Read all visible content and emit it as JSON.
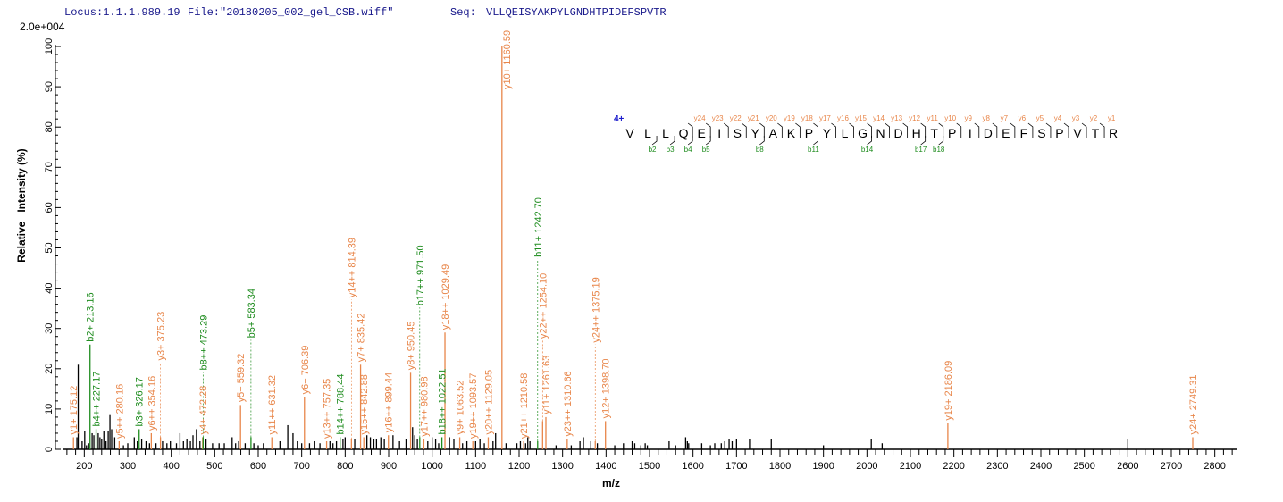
{
  "header": {
    "locus": "Locus:1.1.1.989.19",
    "file": "File:\"20180205_002_gel_CSB.wiff\"",
    "seq_label": "Seq:",
    "seq": "VLLQEISYAKPYLGNDHTPIDEFSPVTR"
  },
  "colors": {
    "y_ion": "#e8864a",
    "b_ion": "#1e8c1e",
    "unmatched": "#000000",
    "header_text": "#1a1a8c",
    "charge": "#1a1acc"
  },
  "chart_data": {
    "type": "bar",
    "subtype": "mass-spectrum-sticks",
    "scale_label": "2.0e+004",
    "xlabel": "m/z",
    "ylabel": "Relative   Intensity (%)",
    "xlim": [
      150,
      2850
    ],
    "ylim": [
      0,
      100
    ],
    "x_ticks": [
      200,
      300,
      400,
      500,
      600,
      700,
      800,
      900,
      1000,
      1100,
      1200,
      1300,
      1400,
      1500,
      1600,
      1700,
      1800,
      1900,
      2000,
      2100,
      2200,
      2300,
      2400,
      2500,
      2600,
      2700,
      2800
    ],
    "y_ticks": [
      0,
      10,
      20,
      30,
      40,
      50,
      60,
      70,
      80,
      90,
      100
    ],
    "grid": false,
    "annotated_peaks": [
      {
        "mz": 175.12,
        "intensity": 3,
        "ion": "y",
        "label": "y1+ 175.12"
      },
      {
        "mz": 213.16,
        "intensity": 26,
        "ion": "b",
        "label": "b2+ 213.16"
      },
      {
        "mz": 227.17,
        "intensity": 5,
        "ion": "b",
        "label": "b4++ 227.17"
      },
      {
        "mz": 280.16,
        "intensity": 2,
        "ion": "y",
        "label": "y5++ 280.16"
      },
      {
        "mz": 326.17,
        "intensity": 5,
        "ion": "b",
        "label": "b3+ 326.17"
      },
      {
        "mz": 354.16,
        "intensity": 4,
        "ion": "y",
        "label": "y6++ 354.16"
      },
      {
        "mz": 375.23,
        "intensity": 3,
        "ion": "y",
        "label": "y3+ 375.23"
      },
      {
        "mz": 472.28,
        "intensity": 3,
        "ion": "y",
        "label": "y4+ 472.28"
      },
      {
        "mz": 473.29,
        "intensity": 3,
        "ion": "b",
        "label": "b8++ 473.29"
      },
      {
        "mz": 559.32,
        "intensity": 11,
        "ion": "y",
        "label": "y5+ 559.32"
      },
      {
        "mz": 583.34,
        "intensity": 3,
        "ion": "b",
        "label": "b5+ 583.34"
      },
      {
        "mz": 631.32,
        "intensity": 3,
        "ion": "y",
        "label": "y11++ 631.32"
      },
      {
        "mz": 706.39,
        "intensity": 13,
        "ion": "y",
        "label": "y6+ 706.39"
      },
      {
        "mz": 757.35,
        "intensity": 2,
        "ion": "y",
        "label": "y13++ 757.35"
      },
      {
        "mz": 788.44,
        "intensity": 3,
        "ion": "b",
        "label": "b14++ 788.44"
      },
      {
        "mz": 814.39,
        "intensity": 2.5,
        "ion": "y",
        "label": "y14++ 814.39"
      },
      {
        "mz": 835.42,
        "intensity": 21,
        "ion": "y",
        "label": "y7+ 835.42"
      },
      {
        "mz": 842.88,
        "intensity": 3,
        "ion": "y",
        "label": "y15++ 842.88"
      },
      {
        "mz": 899.44,
        "intensity": 3.5,
        "ion": "y",
        "label": "y16++ 899.44"
      },
      {
        "mz": 950.45,
        "intensity": 19,
        "ion": "y",
        "label": "y8+ 950.45"
      },
      {
        "mz": 971.5,
        "intensity": 3,
        "ion": "b",
        "label": "b17++ 971.50"
      },
      {
        "mz": 980.98,
        "intensity": 2.5,
        "ion": "y",
        "label": "y17++ 980.98"
      },
      {
        "mz": 1022.51,
        "intensity": 3,
        "ion": "b",
        "label": "b18++ 1022.51"
      },
      {
        "mz": 1029.49,
        "intensity": 29,
        "ion": "y",
        "label": "y18++ 1029.49"
      },
      {
        "mz": 1063.52,
        "intensity": 3,
        "ion": "y",
        "label": "y9+ 1063.52"
      },
      {
        "mz": 1093.57,
        "intensity": 2,
        "ion": "y",
        "label": "y19++ 1093.57"
      },
      {
        "mz": 1129.05,
        "intensity": 3,
        "ion": "y",
        "label": "y20++ 1129.05"
      },
      {
        "mz": 1160.59,
        "intensity": 100,
        "ion": "y",
        "label": "y10+ 1160.59"
      },
      {
        "mz": 1210.58,
        "intensity": 2,
        "ion": "y",
        "label": "y21++ 1210.58"
      },
      {
        "mz": 1242.7,
        "intensity": 2,
        "ion": "b",
        "label": "b11+ 1242.70"
      },
      {
        "mz": 1254.1,
        "intensity": 7,
        "ion": "y",
        "label": "y22++ 1254.10"
      },
      {
        "mz": 1261.63,
        "intensity": 8,
        "ion": "y",
        "label": "y11+ 1261.63"
      },
      {
        "mz": 1310.66,
        "intensity": 2.5,
        "ion": "y",
        "label": "y23++ 1310.66"
      },
      {
        "mz": 1375.19,
        "intensity": 2,
        "ion": "y",
        "label": "y24++ 1375.19"
      },
      {
        "mz": 1398.7,
        "intensity": 7,
        "ion": "y",
        "label": "y12+ 1398.70"
      },
      {
        "mz": 2186.09,
        "intensity": 6.5,
        "ion": "y",
        "label": "y19+ 2186.09"
      },
      {
        "mz": 2749.31,
        "intensity": 3,
        "ion": "y",
        "label": "y24+ 2749.31"
      }
    ],
    "unmatched_peaks": [
      [
        183,
        3
      ],
      [
        186,
        21
      ],
      [
        195,
        2
      ],
      [
        201,
        4.5
      ],
      [
        205,
        1
      ],
      [
        210,
        1.5
      ],
      [
        218,
        4
      ],
      [
        222,
        3.5
      ],
      [
        232,
        4
      ],
      [
        236,
        3
      ],
      [
        240,
        2.5
      ],
      [
        245,
        4.5
      ],
      [
        250,
        2
      ],
      [
        255,
        4.5
      ],
      [
        259,
        8.5
      ],
      [
        263,
        5
      ],
      [
        270,
        3
      ],
      [
        290,
        1
      ],
      [
        300,
        1.5
      ],
      [
        315,
        3
      ],
      [
        322,
        2
      ],
      [
        332,
        2.5
      ],
      [
        342,
        2
      ],
      [
        350,
        1.5
      ],
      [
        365,
        1.5
      ],
      [
        380,
        2
      ],
      [
        390,
        1.5
      ],
      [
        398,
        2
      ],
      [
        412,
        1.5
      ],
      [
        420,
        4
      ],
      [
        428,
        2
      ],
      [
        436,
        2.5
      ],
      [
        444,
        2
      ],
      [
        450,
        3.5
      ],
      [
        458,
        5
      ],
      [
        466,
        2
      ],
      [
        480,
        2.5
      ],
      [
        495,
        1.5
      ],
      [
        510,
        1.5
      ],
      [
        522,
        1.5
      ],
      [
        540,
        3
      ],
      [
        548,
        1.5
      ],
      [
        555,
        2
      ],
      [
        570,
        1.5
      ],
      [
        590,
        1.5
      ],
      [
        600,
        1
      ],
      [
        612,
        1.5
      ],
      [
        650,
        2
      ],
      [
        668,
        6
      ],
      [
        680,
        4
      ],
      [
        690,
        2
      ],
      [
        700,
        1.5
      ],
      [
        718,
        1.5
      ],
      [
        730,
        2
      ],
      [
        742,
        1.5
      ],
      [
        765,
        2
      ],
      [
        772,
        1.5
      ],
      [
        780,
        2
      ],
      [
        795,
        2.5
      ],
      [
        800,
        3
      ],
      [
        822,
        2.5
      ],
      [
        850,
        3.5
      ],
      [
        858,
        3
      ],
      [
        866,
        2.5
      ],
      [
        872,
        2.5
      ],
      [
        882,
        3
      ],
      [
        890,
        2.5
      ],
      [
        910,
        3.5
      ],
      [
        925,
        2
      ],
      [
        940,
        2.5
      ],
      [
        955,
        5.5
      ],
      [
        960,
        3.5
      ],
      [
        966,
        2.5
      ],
      [
        990,
        2
      ],
      [
        1000,
        3
      ],
      [
        1008,
        2.5
      ],
      [
        1015,
        1.5
      ],
      [
        1040,
        3
      ],
      [
        1050,
        2.5
      ],
      [
        1070,
        1.5
      ],
      [
        1080,
        2
      ],
      [
        1100,
        2
      ],
      [
        1110,
        2.5
      ],
      [
        1120,
        1.5
      ],
      [
        1140,
        2
      ],
      [
        1146,
        4
      ],
      [
        1170,
        1.5
      ],
      [
        1195,
        1.5
      ],
      [
        1203,
        2
      ],
      [
        1215,
        1.5
      ],
      [
        1220,
        3
      ],
      [
        1225,
        2
      ],
      [
        1285,
        1
      ],
      [
        1320,
        1
      ],
      [
        1340,
        2
      ],
      [
        1348,
        3
      ],
      [
        1365,
        2
      ],
      [
        1380,
        1.5
      ],
      [
        1420,
        1
      ],
      [
        1440,
        1.5
      ],
      [
        1460,
        2
      ],
      [
        1466,
        1.5
      ],
      [
        1480,
        1
      ],
      [
        1490,
        1.5
      ],
      [
        1495,
        1
      ],
      [
        1545,
        2
      ],
      [
        1560,
        1
      ],
      [
        1583,
        3
      ],
      [
        1587,
        2
      ],
      [
        1590,
        1.5
      ],
      [
        1620,
        1.5
      ],
      [
        1640,
        1
      ],
      [
        1650,
        1.5
      ],
      [
        1665,
        1.5
      ],
      [
        1673,
        2
      ],
      [
        1683,
        2.5
      ],
      [
        1690,
        2
      ],
      [
        1700,
        2.5
      ],
      [
        1730,
        2.5
      ],
      [
        1780,
        2.5
      ],
      [
        1900,
        1
      ],
      [
        2010,
        2.5
      ],
      [
        2035,
        1.5
      ],
      [
        2600,
        2.5
      ]
    ]
  },
  "sequence_map": {
    "charge": "4+",
    "residues": [
      "V",
      "L",
      "L",
      "Q",
      "E",
      "I",
      "S",
      "Y",
      "A",
      "K",
      "P",
      "Y",
      "L",
      "G",
      "N",
      "D",
      "H",
      "T",
      "P",
      "I",
      "D",
      "E",
      "F",
      "S",
      "P",
      "V",
      "T",
      "R"
    ],
    "y_ions": [
      24,
      23,
      22,
      21,
      20,
      19,
      18,
      17,
      16,
      15,
      14,
      13,
      12,
      11,
      10,
      9,
      8,
      7,
      6,
      5,
      4,
      3,
      2,
      1
    ],
    "b_ions": [
      2,
      3,
      4,
      5,
      8,
      11,
      14,
      17,
      18
    ]
  }
}
